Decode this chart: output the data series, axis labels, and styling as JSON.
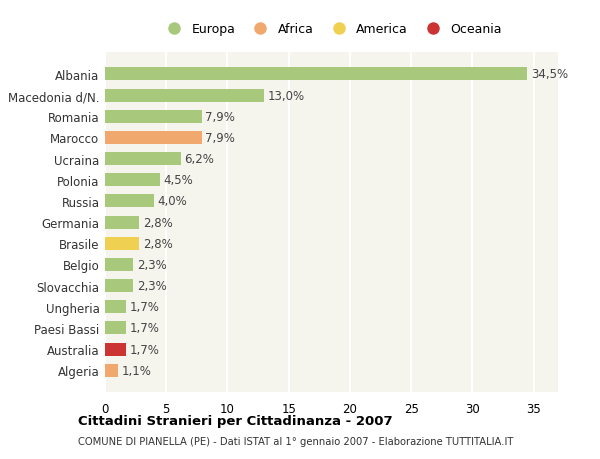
{
  "categories": [
    "Albania",
    "Macedonia d/N.",
    "Romania",
    "Marocco",
    "Ucraina",
    "Polonia",
    "Russia",
    "Germania",
    "Brasile",
    "Belgio",
    "Slovacchia",
    "Ungheria",
    "Paesi Bassi",
    "Australia",
    "Algeria"
  ],
  "values": [
    34.5,
    13.0,
    7.9,
    7.9,
    6.2,
    4.5,
    4.0,
    2.8,
    2.8,
    2.3,
    2.3,
    1.7,
    1.7,
    1.7,
    1.1
  ],
  "labels": [
    "34,5%",
    "13,0%",
    "7,9%",
    "7,9%",
    "6,2%",
    "4,5%",
    "4,0%",
    "2,8%",
    "2,8%",
    "2,3%",
    "2,3%",
    "1,7%",
    "1,7%",
    "1,7%",
    "1,1%"
  ],
  "continents": [
    "Europa",
    "Europa",
    "Europa",
    "Africa",
    "Europa",
    "Europa",
    "Europa",
    "Europa",
    "America",
    "Europa",
    "Europa",
    "Europa",
    "Europa",
    "Oceania",
    "Africa"
  ],
  "colors": {
    "Europa": "#a8c87c",
    "Africa": "#f0a86c",
    "America": "#f0d050",
    "Oceania": "#cc3333"
  },
  "title": "Cittadini Stranieri per Cittadinanza - 2007",
  "subtitle": "COMUNE DI PIANELLA (PE) - Dati ISTAT al 1° gennaio 2007 - Elaborazione TUTTITALIA.IT",
  "xlim": [
    0,
    37
  ],
  "xticks": [
    0,
    5,
    10,
    15,
    20,
    25,
    30,
    35
  ],
  "background_color": "#ffffff",
  "plot_bg_color": "#f5f5ee",
  "grid_color": "#ffffff"
}
